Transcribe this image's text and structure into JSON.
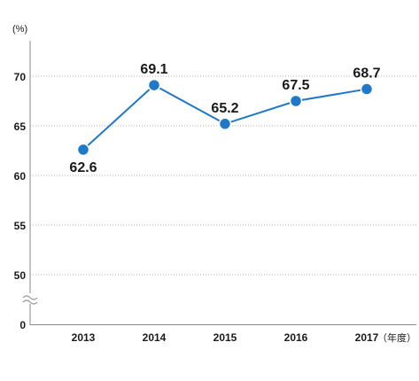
{
  "chart_data": {
    "type": "line",
    "categories": [
      "2013",
      "2014",
      "2015",
      "2016",
      "2017"
    ],
    "values": [
      62.6,
      69.1,
      65.2,
      67.5,
      68.7
    ],
    "data_labels": [
      "62.6",
      "69.1",
      "65.2",
      "67.5",
      "68.7"
    ],
    "y_unit": "(%)",
    "x_unit": "（年度）",
    "y_ticks": [
      "70",
      "65",
      "60",
      "55",
      "50",
      "0"
    ],
    "y_tick_values": [
      70,
      65,
      60,
      55,
      50,
      0
    ],
    "ylim": [
      0,
      70
    ],
    "axis_break": true,
    "grid": true,
    "series_color": "#1f78c8"
  }
}
